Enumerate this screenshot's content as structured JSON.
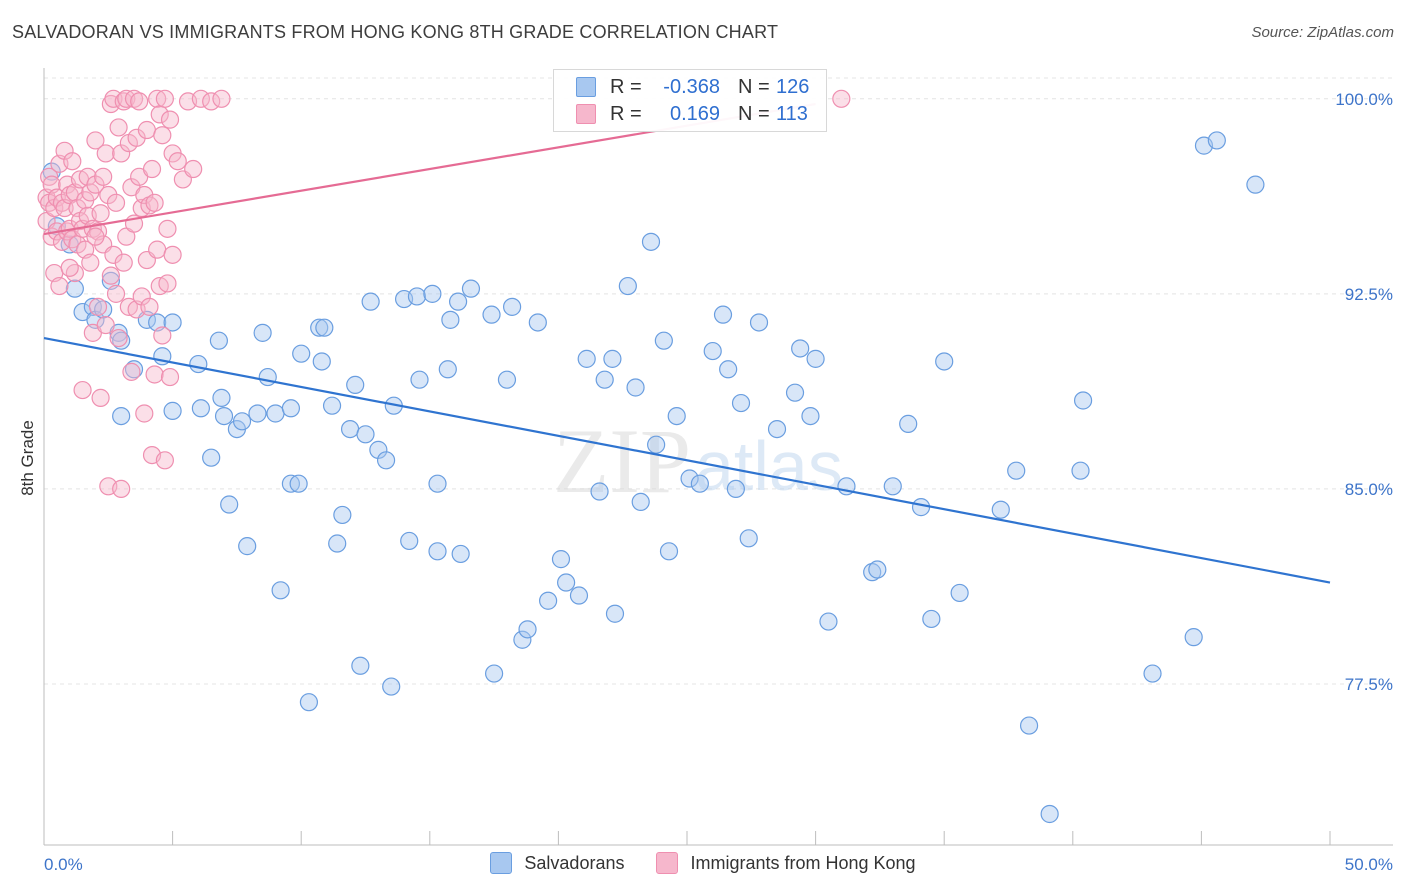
{
  "title": "SALVADORAN VS IMMIGRANTS FROM HONG KONG 8TH GRADE CORRELATION CHART",
  "source": "Source: ZipAtlas.com",
  "watermark": {
    "part1": "ZIP",
    "part2": "atlas"
  },
  "legend": {
    "rows": [
      {
        "r_label": "R =",
        "r_value": "-0.368",
        "n_label": "N =",
        "n_value": "126",
        "color": "#a8c8f0"
      },
      {
        "r_label": "R =",
        "r_value": " 0.169",
        "n_label": "N =",
        "n_value": "113",
        "color": "#f6b7cc"
      }
    ]
  },
  "bottom_legend": [
    {
      "label": "Salvadorans",
      "color": "#a8c8f0"
    },
    {
      "label": "Immigrants from Hong Kong",
      "color": "#f6b7cc"
    }
  ],
  "chart_data": {
    "type": "scatter",
    "title": "SALVADORAN VS IMMIGRANTS FROM HONG KONG 8TH GRADE CORRELATION CHART",
    "xlabel": "",
    "ylabel": "8th Grade",
    "xlim": [
      0,
      50
    ],
    "ylim": [
      71.5,
      100.8
    ],
    "x_tick_labels": [
      "0.0%",
      "50.0%"
    ],
    "y_ticks": [
      77.5,
      85.0,
      92.5,
      100.0
    ],
    "y_tick_labels": [
      "77.5%",
      "85.0%",
      "92.5%",
      "100.0%"
    ],
    "grid": true,
    "series": [
      {
        "name": "Salvadorans",
        "color": "#6a9ee0",
        "fill": "#a8c8f0",
        "trend": {
          "x": [
            0,
            50
          ],
          "y": [
            90.8,
            81.4
          ],
          "color": "#2f74d0"
        },
        "points": [
          [
            0.3,
            97.2
          ],
          [
            0.5,
            95.1
          ],
          [
            1.0,
            94.4
          ],
          [
            1.2,
            92.7
          ],
          [
            1.5,
            91.8
          ],
          [
            1.9,
            92.0
          ],
          [
            2.0,
            91.5
          ],
          [
            2.3,
            91.9
          ],
          [
            2.6,
            93.0
          ],
          [
            2.9,
            91.0
          ],
          [
            3.0,
            90.7
          ],
          [
            3.5,
            89.6
          ],
          [
            3.0,
            87.8
          ],
          [
            4.0,
            91.5
          ],
          [
            4.4,
            91.4
          ],
          [
            4.6,
            90.1
          ],
          [
            5.0,
            91.4
          ],
          [
            5.0,
            88.0
          ],
          [
            6.1,
            88.1
          ],
          [
            6.0,
            89.8
          ],
          [
            6.5,
            86.2
          ],
          [
            6.8,
            90.7
          ],
          [
            6.9,
            88.5
          ],
          [
            7.0,
            87.8
          ],
          [
            7.2,
            84.4
          ],
          [
            7.5,
            87.3
          ],
          [
            7.7,
            87.6
          ],
          [
            7.9,
            82.8
          ],
          [
            8.3,
            87.9
          ],
          [
            8.5,
            91.0
          ],
          [
            8.7,
            89.3
          ],
          [
            9.0,
            87.9
          ],
          [
            9.2,
            81.1
          ],
          [
            9.6,
            85.2
          ],
          [
            9.9,
            85.2
          ],
          [
            9.6,
            88.1
          ],
          [
            10.0,
            90.2
          ],
          [
            10.3,
            76.8
          ],
          [
            10.7,
            91.2
          ],
          [
            10.9,
            91.2
          ],
          [
            10.8,
            89.9
          ],
          [
            11.2,
            88.2
          ],
          [
            11.6,
            84.0
          ],
          [
            11.4,
            82.9
          ],
          [
            11.9,
            87.3
          ],
          [
            12.3,
            78.2
          ],
          [
            12.5,
            87.1
          ],
          [
            12.1,
            89.0
          ],
          [
            12.7,
            92.2
          ],
          [
            13.0,
            86.5
          ],
          [
            13.3,
            86.1
          ],
          [
            13.5,
            77.4
          ],
          [
            13.6,
            88.2
          ],
          [
            14.0,
            92.3
          ],
          [
            14.2,
            83.0
          ],
          [
            14.6,
            89.2
          ],
          [
            14.5,
            92.4
          ],
          [
            15.1,
            92.5
          ],
          [
            15.3,
            85.2
          ],
          [
            15.3,
            82.6
          ],
          [
            15.7,
            89.6
          ],
          [
            15.8,
            91.5
          ],
          [
            16.1,
            92.2
          ],
          [
            16.2,
            82.5
          ],
          [
            16.6,
            92.7
          ],
          [
            17.4,
            91.7
          ],
          [
            17.5,
            77.9
          ],
          [
            18.0,
            89.2
          ],
          [
            18.2,
            92.0
          ],
          [
            18.6,
            79.2
          ],
          [
            18.8,
            79.6
          ],
          [
            19.2,
            91.4
          ],
          [
            19.6,
            80.7
          ],
          [
            20.1,
            82.3
          ],
          [
            20.3,
            81.4
          ],
          [
            20.8,
            80.9
          ],
          [
            21.1,
            90.0
          ],
          [
            21.6,
            84.9
          ],
          [
            21.8,
            89.2
          ],
          [
            22.1,
            90.0
          ],
          [
            22.2,
            80.2
          ],
          [
            22.7,
            92.8
          ],
          [
            23.0,
            88.9
          ],
          [
            23.2,
            84.5
          ],
          [
            23.6,
            94.5
          ],
          [
            23.8,
            86.7
          ],
          [
            24.1,
            90.7
          ],
          [
            24.3,
            82.6
          ],
          [
            24.6,
            87.8
          ],
          [
            25.1,
            85.4
          ],
          [
            25.5,
            85.2
          ],
          [
            26.0,
            90.3
          ],
          [
            26.4,
            91.7
          ],
          [
            26.6,
            89.6
          ],
          [
            26.9,
            85.0
          ],
          [
            27.1,
            88.3
          ],
          [
            27.4,
            83.1
          ],
          [
            27.8,
            91.4
          ],
          [
            28.5,
            87.3
          ],
          [
            29.2,
            88.7
          ],
          [
            29.4,
            90.4
          ],
          [
            29.8,
            87.8
          ],
          [
            30.0,
            90.0
          ],
          [
            30.5,
            79.9
          ],
          [
            31.2,
            85.1
          ],
          [
            32.2,
            81.8
          ],
          [
            32.4,
            81.9
          ],
          [
            33.0,
            85.1
          ],
          [
            33.6,
            87.5
          ],
          [
            34.1,
            84.3
          ],
          [
            34.5,
            80.0
          ],
          [
            35.0,
            89.9
          ],
          [
            35.6,
            81.0
          ],
          [
            37.2,
            84.2
          ],
          [
            37.8,
            85.7
          ],
          [
            38.3,
            75.9
          ],
          [
            39.1,
            72.5
          ],
          [
            40.3,
            85.7
          ],
          [
            40.4,
            88.4
          ],
          [
            43.1,
            77.9
          ],
          [
            44.7,
            79.3
          ],
          [
            45.1,
            98.2
          ],
          [
            45.6,
            98.4
          ],
          [
            47.1,
            96.7
          ]
        ]
      },
      {
        "name": "Immigrants from Hong Kong",
        "color": "#ef8fb0",
        "fill": "#f6b7cc",
        "trend": {
          "x": [
            0,
            30
          ],
          "y": [
            94.8,
            99.8
          ],
          "color": "#e56b94"
        },
        "points": [
          [
            0.1,
            96.2
          ],
          [
            0.1,
            95.3
          ],
          [
            0.2,
            97.0
          ],
          [
            0.2,
            96.0
          ],
          [
            0.3,
            96.7
          ],
          [
            0.3,
            94.7
          ],
          [
            0.4,
            95.8
          ],
          [
            0.4,
            93.3
          ],
          [
            0.5,
            96.2
          ],
          [
            0.5,
            94.9
          ],
          [
            0.6,
            97.5
          ],
          [
            0.6,
            92.8
          ],
          [
            0.7,
            96.0
          ],
          [
            0.7,
            94.5
          ],
          [
            0.8,
            98.0
          ],
          [
            0.8,
            95.8
          ],
          [
            0.9,
            96.7
          ],
          [
            0.9,
            94.9
          ],
          [
            1.0,
            96.3
          ],
          [
            1.0,
            95.0
          ],
          [
            1.1,
            97.6
          ],
          [
            1.1,
            94.6
          ],
          [
            1.2,
            96.4
          ],
          [
            1.2,
            93.3
          ],
          [
            1.3,
            95.8
          ],
          [
            1.3,
            94.4
          ],
          [
            1.4,
            96.9
          ],
          [
            1.4,
            95.3
          ],
          [
            1.5,
            95.0
          ],
          [
            1.5,
            88.8
          ],
          [
            1.6,
            96.1
          ],
          [
            1.6,
            94.2
          ],
          [
            1.7,
            97.0
          ],
          [
            1.7,
            95.5
          ],
          [
            1.8,
            96.4
          ],
          [
            1.8,
            93.7
          ],
          [
            1.9,
            95.0
          ],
          [
            1.9,
            91.0
          ],
          [
            2.0,
            98.4
          ],
          [
            2.0,
            96.7
          ],
          [
            2.1,
            94.9
          ],
          [
            2.1,
            92.0
          ],
          [
            2.2,
            95.6
          ],
          [
            2.2,
            88.5
          ],
          [
            2.3,
            97.0
          ],
          [
            2.3,
            94.4
          ],
          [
            2.4,
            97.9
          ],
          [
            2.4,
            91.3
          ],
          [
            2.5,
            96.3
          ],
          [
            2.5,
            85.1
          ],
          [
            2.6,
            99.8
          ],
          [
            2.6,
            93.2
          ],
          [
            2.7,
            100.0
          ],
          [
            2.7,
            94.0
          ],
          [
            2.8,
            96.0
          ],
          [
            2.8,
            92.5
          ],
          [
            2.9,
            98.9
          ],
          [
            2.9,
            90.8
          ],
          [
            3.0,
            97.9
          ],
          [
            3.0,
            85.0
          ],
          [
            3.1,
            99.9
          ],
          [
            3.1,
            93.7
          ],
          [
            3.2,
            100.0
          ],
          [
            3.2,
            94.7
          ],
          [
            3.3,
            98.3
          ],
          [
            3.3,
            92.0
          ],
          [
            3.4,
            96.6
          ],
          [
            3.4,
            89.5
          ],
          [
            3.5,
            100.0
          ],
          [
            3.5,
            95.2
          ],
          [
            3.6,
            98.5
          ],
          [
            3.6,
            91.9
          ],
          [
            3.7,
            99.9
          ],
          [
            3.7,
            97.0
          ],
          [
            3.8,
            95.8
          ],
          [
            3.8,
            92.4
          ],
          [
            3.9,
            96.3
          ],
          [
            3.9,
            87.9
          ],
          [
            4.0,
            98.8
          ],
          [
            4.0,
            93.8
          ],
          [
            4.1,
            95.9
          ],
          [
            4.1,
            92.0
          ],
          [
            4.2,
            97.3
          ],
          [
            4.2,
            86.3
          ],
          [
            4.3,
            96.0
          ],
          [
            4.3,
            89.4
          ],
          [
            4.4,
            100.0
          ],
          [
            4.4,
            94.2
          ],
          [
            4.5,
            99.4
          ],
          [
            4.5,
            92.8
          ],
          [
            4.6,
            98.6
          ],
          [
            4.6,
            90.9
          ],
          [
            4.7,
            100.0
          ],
          [
            4.7,
            86.1
          ],
          [
            4.8,
            95.0
          ],
          [
            4.8,
            92.9
          ],
          [
            4.9,
            99.2
          ],
          [
            4.9,
            89.3
          ],
          [
            5.0,
            97.9
          ],
          [
            5.0,
            94.0
          ],
          [
            5.2,
            97.6
          ],
          [
            5.4,
            96.9
          ],
          [
            5.6,
            99.9
          ],
          [
            5.8,
            97.3
          ],
          [
            6.1,
            100.0
          ],
          [
            6.5,
            99.9
          ],
          [
            6.9,
            100.0
          ],
          [
            31.0,
            100.0
          ],
          [
            2.0,
            94.7
          ],
          [
            1.0,
            93.5
          ]
        ]
      }
    ]
  }
}
